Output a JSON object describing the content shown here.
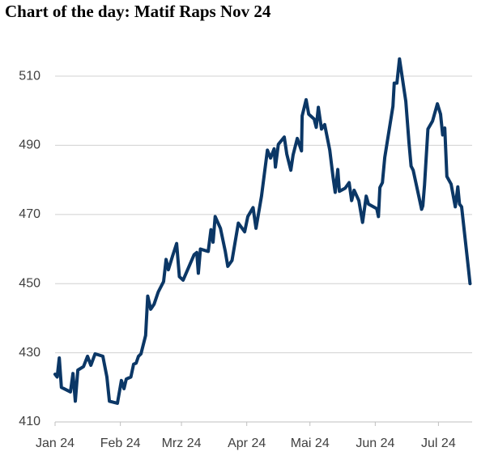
{
  "chart_data": {
    "type": "line",
    "title": "Chart of the day: Matif Raps Nov 24",
    "x": [
      0,
      1,
      2,
      3,
      7.3,
      8.5,
      9.6,
      10.8,
      13.5,
      15.4,
      17,
      19,
      22.7,
      24.6,
      25.8,
      29.6,
      31.5,
      32.7,
      33.8,
      36,
      37.3,
      38.5,
      39.6,
      40.8,
      43,
      44,
      45.4,
      47,
      49,
      51.5,
      52.7,
      53.8,
      55.8,
      57.7,
      59,
      60.8,
      66,
      67.3,
      68,
      69,
      72.7,
      74,
      75,
      76,
      78.5,
      80.8,
      82,
      84,
      87,
      90,
      91.5,
      94,
      95.4,
      98,
      100.8,
      102.3,
      104,
      104.6,
      106,
      108.8,
      110,
      111.9,
      113,
      115,
      117,
      117.3,
      119.2,
      120.4,
      123,
      124,
      125,
      126.5,
      128,
      130.4,
      132,
      133,
      134.2,
      135,
      137.7,
      139.6,
      140.8,
      142,
      144.2,
      146,
      147.7,
      148.8,
      152.7,
      153.5,
      154.2,
      155.4,
      156.5,
      160.4,
      161,
      162.3,
      163.5,
      166.5,
      168,
      169,
      170,
      174,
      174.6,
      175.4,
      177,
      179.2,
      181.5,
      183,
      184,
      185,
      186,
      188,
      190,
      191.2,
      192,
      193,
      196.2,
      197
    ],
    "values": [
      423.8,
      423,
      428.5,
      420,
      418.7,
      424,
      416,
      425,
      426,
      429,
      426.4,
      429.7,
      429,
      423,
      416,
      415.4,
      422,
      419.6,
      422.4,
      423,
      426.7,
      427,
      429,
      429.7,
      435,
      446.4,
      442.6,
      444,
      447.6,
      450.6,
      457,
      454,
      458,
      461.6,
      452,
      451,
      458.4,
      459,
      453,
      460,
      459.3,
      465.6,
      462,
      469.4,
      466,
      459.3,
      455,
      456.7,
      467.5,
      465,
      469.4,
      472,
      466,
      475.3,
      488.6,
      486.3,
      489,
      483.7,
      490.3,
      492.4,
      487.5,
      482.8,
      487.2,
      492,
      488.4,
      498.5,
      503.2,
      499,
      497.6,
      495.2,
      501,
      494.7,
      496,
      488.6,
      480.7,
      476.4,
      483,
      476.7,
      477.6,
      479.2,
      474,
      477,
      474,
      467.7,
      475.3,
      473,
      471.7,
      469.4,
      477.8,
      479.2,
      486.5,
      501.3,
      508,
      508,
      515,
      502.7,
      490.8,
      484,
      482.8,
      471.5,
      472.5,
      478.5,
      494.7,
      497,
      502,
      499,
      493,
      495,
      481,
      478.8,
      472.2,
      478,
      473,
      472.2,
      454.6,
      450
    ],
    "color": "#0b3766",
    "xlim": [
      0,
      198
    ],
    "xticks": [
      {
        "value": 0,
        "label": "Jan 24"
      },
      {
        "value": 31,
        "label": "Feb 24"
      },
      {
        "value": 60,
        "label": "Mrz 24"
      },
      {
        "value": 91,
        "label": "Apr 24"
      },
      {
        "value": 121,
        "label": "Mai 24"
      },
      {
        "value": 152,
        "label": "Jun 24"
      },
      {
        "value": 182,
        "label": "Jul 24"
      }
    ],
    "ylim": [
      410,
      525
    ],
    "yticks": [
      410,
      430,
      450,
      470,
      490,
      510
    ],
    "grid": true
  }
}
